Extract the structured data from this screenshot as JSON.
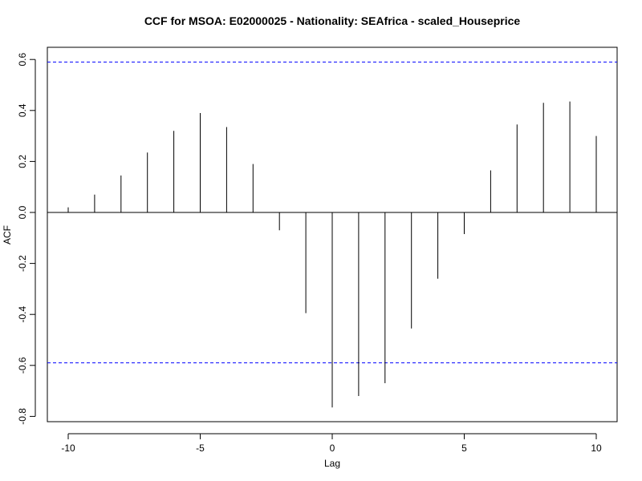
{
  "chart_data": {
    "type": "bar",
    "title": "CCF for MSOA: E02000025 - Nationality: SEAfrica - scaled_Houseprice",
    "xlabel": "Lag",
    "ylabel": "ACF",
    "xlim": [
      -10.5,
      10.5
    ],
    "ylim": [
      -0.8,
      0.6
    ],
    "xticks": [
      -10,
      -5,
      0,
      5,
      10
    ],
    "xtick_labels": [
      "-10",
      "-5",
      "0",
      "5",
      "10"
    ],
    "yticks": [
      -0.8,
      -0.6,
      -0.4,
      -0.2,
      0.0,
      0.2,
      0.4,
      0.6
    ],
    "ytick_labels": [
      "-0.8",
      "-0.6",
      "-0.4",
      "-0.2",
      "0.0",
      "0.2",
      "0.4",
      "0.6"
    ],
    "lags": [
      -10,
      -9,
      -8,
      -7,
      -6,
      -5,
      -4,
      -3,
      -2,
      -1,
      0,
      1,
      2,
      3,
      4,
      5,
      6,
      7,
      8,
      9,
      10
    ],
    "values": [
      0.02,
      0.07,
      0.145,
      0.235,
      0.32,
      0.39,
      0.335,
      0.19,
      -0.07,
      -0.395,
      -0.765,
      -0.72,
      -0.67,
      -0.455,
      -0.26,
      -0.085,
      0.165,
      0.345,
      0.43,
      0.435,
      0.3
    ],
    "confidence_bound": 0.59,
    "colors": {
      "stems": "#000000",
      "confidence": "#0000ff",
      "zero_line": "#000000",
      "frame": "#000000"
    },
    "grid": false,
    "legend": "none"
  }
}
